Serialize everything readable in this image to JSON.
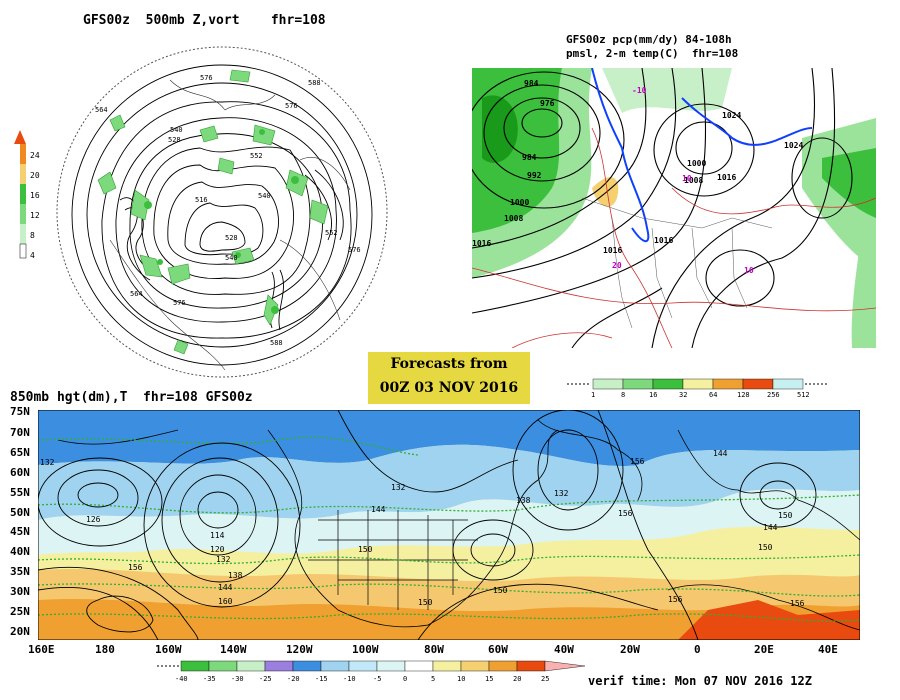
{
  "panel_500mb": {
    "title": "GFS00z  500mb Z,vort    fhr=108",
    "colorbar_labels": [
      "24",
      "20",
      "16",
      "12",
      "8",
      "4"
    ],
    "contour_labels": [
      "576",
      "588",
      "564",
      "576",
      "540",
      "528",
      "552",
      "540",
      "516",
      "528",
      "540",
      "552",
      "576",
      "564",
      "576",
      "588"
    ]
  },
  "panel_precip": {
    "title_line1": "GFS00z pcp(mm/dy) 84-108h",
    "title_line2": "pmsl, 2-m temp(C)  fhr=108",
    "contour_labels": [
      "984",
      "976",
      "984",
      "992",
      "1000",
      "1008",
      "1016",
      "1024",
      "1000",
      "1016",
      "1008",
      "1016",
      "1024",
      "1016",
      "10",
      "-10",
      "10",
      "20"
    ],
    "colorbar_labels": [
      "1",
      "8",
      "16",
      "32",
      "64",
      "128",
      "256",
      "512"
    ]
  },
  "forecast_box": {
    "line1": "Forecasts from",
    "line2": "00Z 03 NOV 2016"
  },
  "panel_850mb": {
    "title": "850mb hgt(dm),T  fhr=108 GFS00z",
    "lat_labels": [
      "75N",
      "70N",
      "65N",
      "60N",
      "55N",
      "50N",
      "45N",
      "40N",
      "35N",
      "30N",
      "25N",
      "20N"
    ],
    "lon_labels": [
      "160E",
      "180",
      "160W",
      "140W",
      "120W",
      "100W",
      "80W",
      "60W",
      "40W",
      "20W",
      "0",
      "20E",
      "40E"
    ],
    "contour_labels": [
      "132",
      "126",
      "114",
      "120",
      "132",
      "138",
      "144",
      "156",
      "160",
      "132",
      "144",
      "150",
      "150",
      "156",
      "150",
      "156",
      "144",
      "138",
      "132",
      "144",
      "156",
      "150",
      "156",
      "150"
    ],
    "colorbar_labels": [
      "-40",
      "-35",
      "-30",
      "-25",
      "-20",
      "-15",
      "-10",
      "-5",
      "0",
      "5",
      "10",
      "15",
      "20",
      "25"
    ],
    "verif_time": "verif time: Mon 07 NOV 2016 12Z"
  },
  "colors": {
    "green_dark": "#3cbf3c",
    "green_light": "#9be39b",
    "yellow": "#f5f0a0",
    "orange": "#f0a030",
    "red": "#e84a10",
    "cyan": "#c8f0f0",
    "blue": "#3c8fe0",
    "contour_green": "#30b030"
  }
}
